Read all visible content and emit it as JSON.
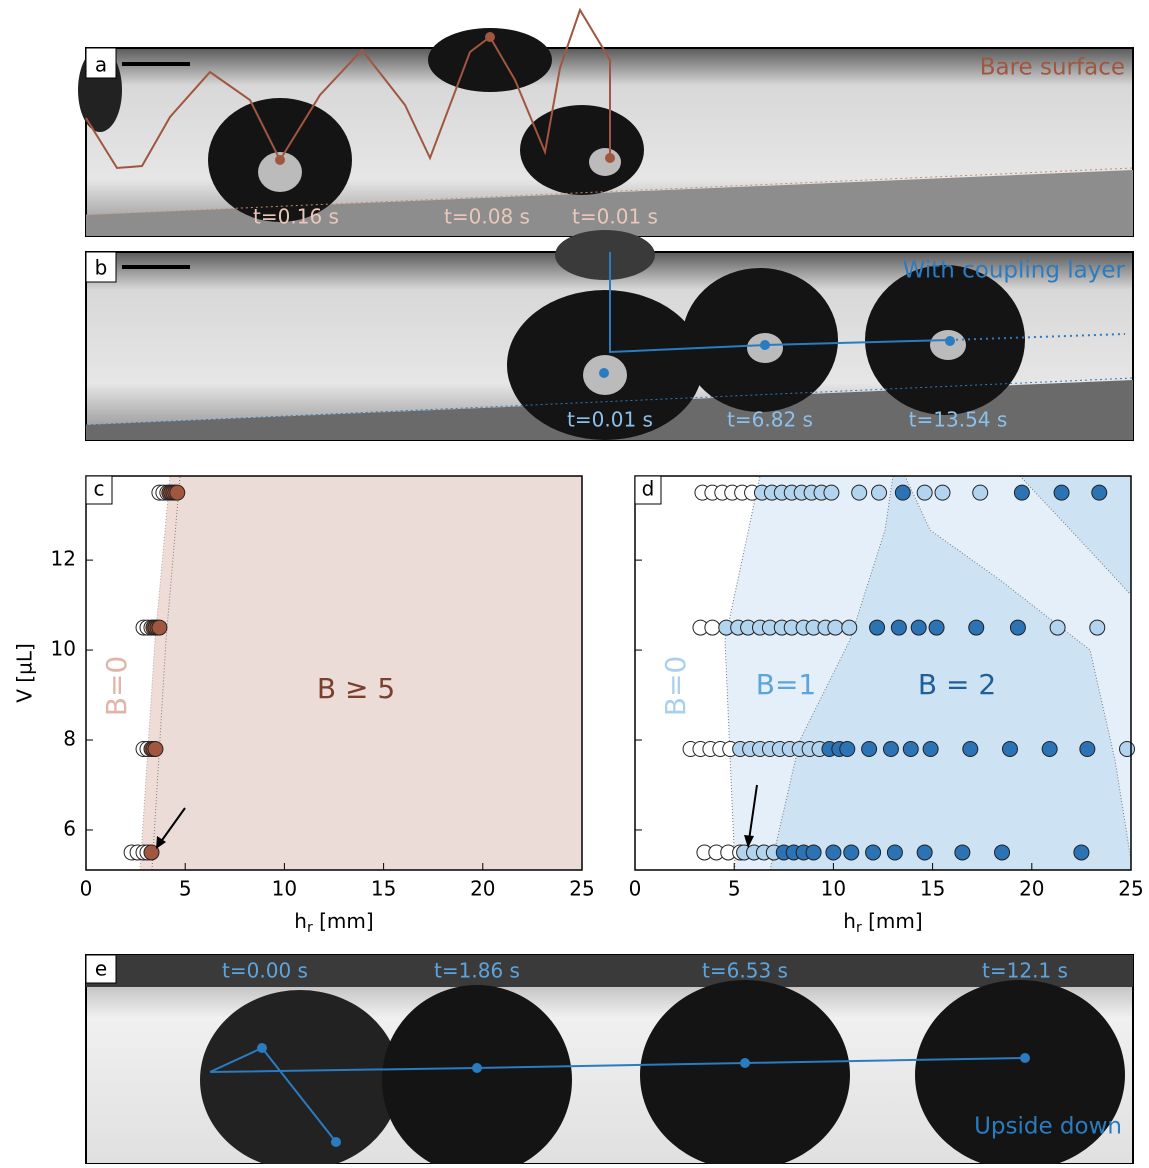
{
  "panels": {
    "a": {
      "label": "a",
      "caption": "Bare surface",
      "times": [
        "t=0.16 s",
        "t=0.08 s",
        "t=0.01 s"
      ]
    },
    "b": {
      "label": "b",
      "caption": "With coupling layer",
      "times": [
        "t=0.01 s",
        "t=6.82 s",
        "t=13.54 s"
      ]
    },
    "e": {
      "label": "e",
      "caption": "Upside down",
      "times": [
        "t=0.00 s",
        "t=1.86 s",
        "t=6.53 s",
        "t=12.1 s"
      ]
    }
  },
  "chart_data": [
    {
      "type": "scatter",
      "label": "c",
      "ylabel": "V [µL]",
      "xlabel": [
        "h",
        "r",
        " [mm]"
      ],
      "xlim": [
        0,
        25
      ],
      "ylim": [
        5.11,
        13.87
      ],
      "xticks": [
        0,
        5,
        10,
        15,
        20,
        25
      ],
      "yticks": [
        6,
        8,
        10,
        12
      ],
      "show_ytick_labels": true,
      "annotations": [
        "B=0",
        "B ≥ 5"
      ],
      "series": [
        {
          "color": "#ffffff",
          "x": [
            3.7,
            3.9,
            4.1,
            2.9,
            3.1,
            3.3,
            2.9,
            3.1,
            2.3,
            2.6,
            2.9,
            3.1
          ],
          "values": [
            13.5,
            13.5,
            13.5,
            10.5,
            10.5,
            10.5,
            7.8,
            7.8,
            5.5,
            5.5,
            5.5,
            5.5
          ]
        },
        {
          "color": "#a0563f",
          "x": [
            4.2,
            4.3,
            4.4,
            4.5,
            4.6,
            3.4,
            3.5,
            3.6,
            3.7,
            3.3,
            3.4,
            3.5,
            3.3
          ],
          "values": [
            13.5,
            13.5,
            13.5,
            13.5,
            13.5,
            10.5,
            10.5,
            10.5,
            10.5,
            7.8,
            7.8,
            7.8,
            5.5
          ]
        }
      ]
    },
    {
      "type": "scatter",
      "label": "d",
      "xlabel": [
        "h",
        "r",
        " [mm]"
      ],
      "xlim": [
        0,
        25
      ],
      "ylim": [
        5.11,
        13.87
      ],
      "xticks": [
        0,
        5,
        10,
        15,
        20,
        25
      ],
      "yticks": [
        6,
        8,
        10,
        12
      ],
      "show_ytick_labels": false,
      "annotations": [
        "B=0",
        "B=1",
        "B = 2"
      ],
      "series": [
        {
          "color": "#ffffff",
          "x": [
            3.4,
            3.9,
            4.4,
            4.9,
            5.4,
            5.9,
            3.3,
            3.9,
            2.8,
            3.3,
            3.8,
            4.3,
            4.8,
            3.5,
            4.1,
            4.7,
            5.3
          ],
          "values": [
            13.5,
            13.5,
            13.5,
            13.5,
            13.5,
            13.5,
            10.5,
            10.5,
            7.8,
            7.8,
            7.8,
            7.8,
            7.8,
            5.5,
            5.5,
            5.5,
            5.5
          ]
        },
        {
          "color": "#b3d4ee",
          "x": [
            6.4,
            6.9,
            7.4,
            7.9,
            8.4,
            8.9,
            9.4,
            9.9,
            11.3,
            12.3,
            14.6,
            15.5,
            17.4,
            4.6,
            5.2,
            5.7,
            6.3,
            6.8,
            7.4,
            7.9,
            8.5,
            9.0,
            9.6,
            10.1,
            10.8,
            21.3,
            23.3,
            5.3,
            5.8,
            6.3,
            6.8,
            7.3,
            7.8,
            8.3,
            8.8,
            9.3,
            24.8,
            5.5,
            6.0,
            6.5,
            7.0
          ],
          "values": [
            13.5,
            13.5,
            13.5,
            13.5,
            13.5,
            13.5,
            13.5,
            13.5,
            13.5,
            13.5,
            13.5,
            13.5,
            13.5,
            10.5,
            10.5,
            10.5,
            10.5,
            10.5,
            10.5,
            10.5,
            10.5,
            10.5,
            10.5,
            10.5,
            10.5,
            10.5,
            10.5,
            7.8,
            7.8,
            7.8,
            7.8,
            7.8,
            7.8,
            7.8,
            7.8,
            7.8,
            7.8,
            5.5,
            5.5,
            5.5,
            5.5
          ]
        },
        {
          "color": "#2b73b4",
          "x": [
            13.5,
            19.5,
            21.5,
            23.4,
            12.2,
            13.3,
            14.3,
            15.2,
            17.2,
            19.3,
            9.8,
            10.3,
            10.7,
            11.8,
            12.9,
            13.9,
            14.9,
            16.9,
            18.9,
            20.9,
            22.8,
            7.5,
            8.0,
            8.5,
            9.0,
            10.0,
            10.9,
            12.0,
            13.1,
            14.6,
            16.5,
            18.5,
            22.5
          ],
          "values": [
            13.5,
            13.5,
            13.5,
            13.5,
            10.5,
            10.5,
            10.5,
            10.5,
            10.5,
            10.5,
            7.8,
            7.8,
            7.8,
            7.8,
            7.8,
            7.8,
            7.8,
            7.8,
            7.8,
            7.8,
            7.8,
            5.5,
            5.5,
            5.5,
            5.5,
            5.5,
            5.5,
            5.5,
            5.5,
            5.5,
            5.5,
            5.5,
            5.5
          ]
        }
      ]
    }
  ]
}
